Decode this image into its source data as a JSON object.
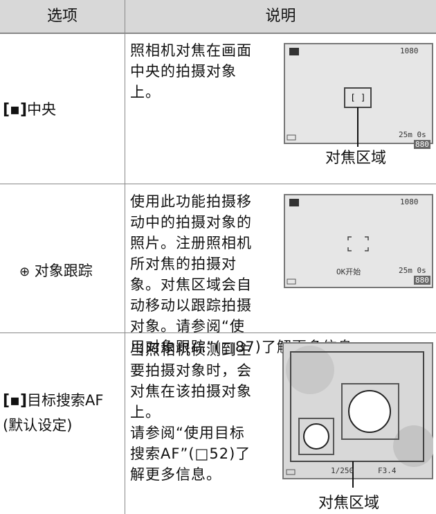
{
  "table": {
    "header": [
      "选项",
      "说明"
    ],
    "rows": [
      {
        "option": [
          "中央"
        ],
        "description": [
          "照相机对焦在画面",
          "中央的拍摄对象",
          "上。"
        ],
        "screen": [
          "1080",
          "25m 0s",
          "880"
        ],
        "caption": "对焦区域"
      },
      {
        "option": [
          "对象跟踪"
        ],
        "description": [
          "使用此功能拍摄移",
          "动中的拍摄对象的",
          "照片。注册照相机",
          "所对焦的拍摄对",
          "象。对焦区域会自",
          "动移动以跟踪拍摄",
          "对象。请参阅“使",
          "用对象跟踪”(□87)了解更多信息。"
        ],
        "screen": [
          "1080",
          "25m 0s",
          "880",
          "OK开始"
        ]
      },
      {
        "option": [
          "目标搜索AF",
          "(默认设定)"
        ],
        "description": [
          "当照相机侦测到主",
          "要拍摄对象时，会",
          "对焦在该拍摄对象",
          "上。",
          "请参阅“使用目标",
          "搜索AF”(□52)了",
          "解更多信息。"
        ],
        "screen": [
          "1/250",
          "F3.4"
        ],
        "caption": "对焦区域"
      }
    ]
  }
}
